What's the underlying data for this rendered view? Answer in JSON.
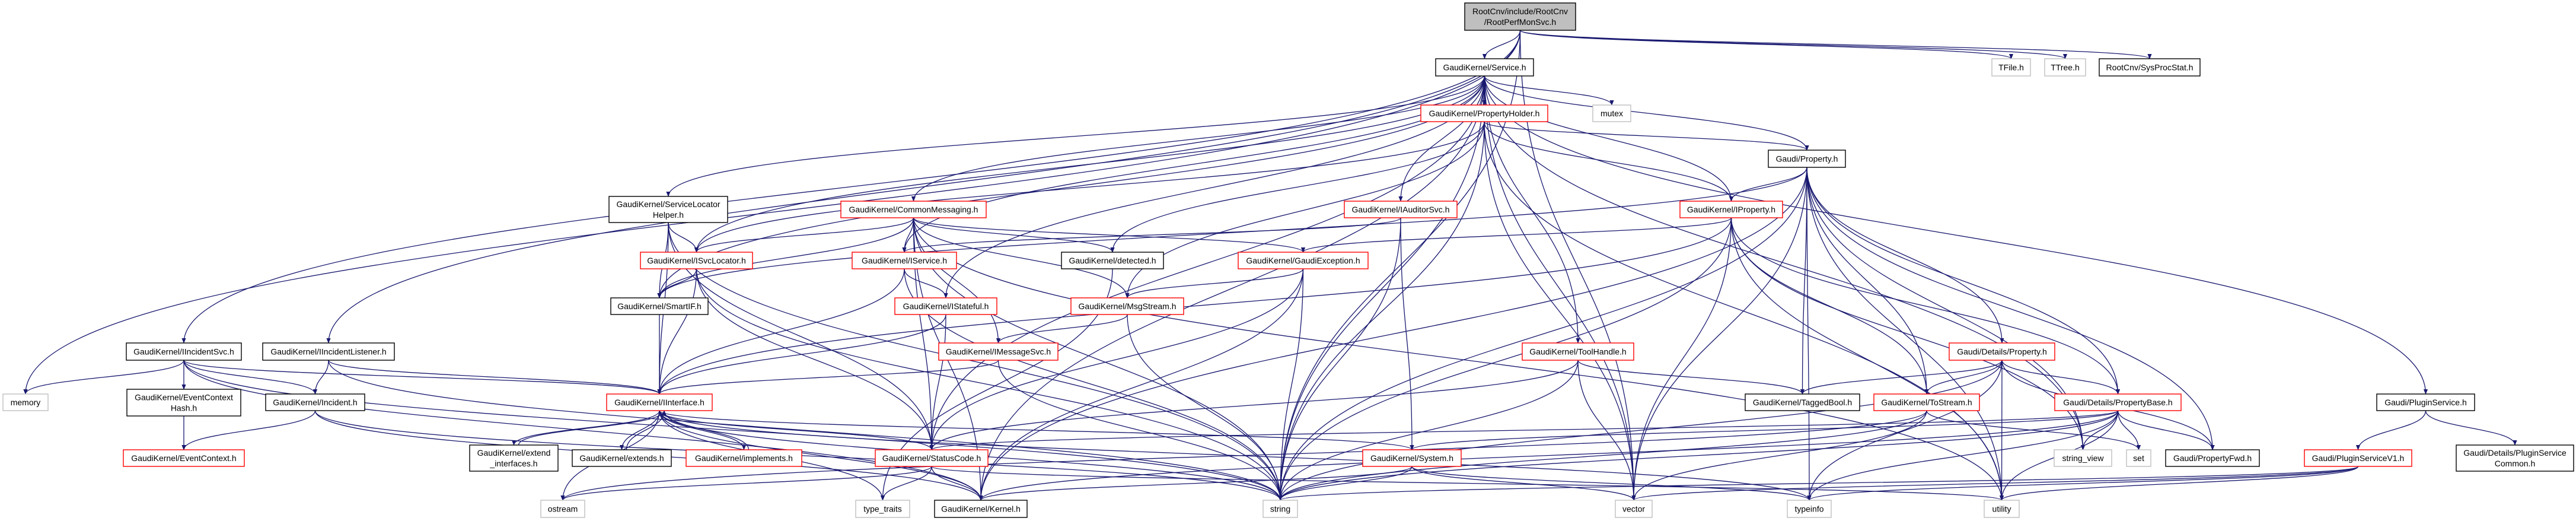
{
  "colors": {
    "edge": "#191970",
    "root_fill": "#bfbfbf",
    "border_normal": "#000000",
    "border_truncated": "#ff0000",
    "border_external": "#bfbfbf"
  },
  "nodes": [
    {
      "id": "root",
      "label": [
        "RootCnv/include/RootCnv",
        "/RootPerfMonSvc.h"
      ],
      "style": "root"
    },
    {
      "id": "service",
      "label": [
        "GaudiKernel/Service.h"
      ],
      "style": "normal"
    },
    {
      "id": "tfile",
      "label": [
        "TFile.h"
      ],
      "style": "external"
    },
    {
      "id": "ttree",
      "label": [
        "TTree.h"
      ],
      "style": "external"
    },
    {
      "id": "sysproc",
      "label": [
        "RootCnv/SysProcStat.h"
      ],
      "style": "normal"
    },
    {
      "id": "propholder",
      "label": [
        "GaudiKernel/PropertyHolder.h"
      ],
      "style": "truncated"
    },
    {
      "id": "mutex",
      "label": [
        "mutex"
      ],
      "style": "external"
    },
    {
      "id": "property",
      "label": [
        "Gaudi/Property.h"
      ],
      "style": "normal"
    },
    {
      "id": "slhelper",
      "label": [
        "GaudiKernel/ServiceLocator",
        "Helper.h"
      ],
      "style": "normal"
    },
    {
      "id": "commonmsg",
      "label": [
        "GaudiKernel/CommonMessaging.h"
      ],
      "style": "truncated"
    },
    {
      "id": "iauditor",
      "label": [
        "GaudiKernel/IAuditorSvc.h"
      ],
      "style": "truncated"
    },
    {
      "id": "iproperty",
      "label": [
        "GaudiKernel/IProperty.h"
      ],
      "style": "truncated"
    },
    {
      "id": "isvcloc",
      "label": [
        "GaudiKernel/ISvcLocator.h"
      ],
      "style": "truncated"
    },
    {
      "id": "iservice",
      "label": [
        "GaudiKernel/IService.h"
      ],
      "style": "truncated"
    },
    {
      "id": "detected",
      "label": [
        "GaudiKernel/detected.h"
      ],
      "style": "normal"
    },
    {
      "id": "gexc",
      "label": [
        "GaudiKernel/GaudiException.h"
      ],
      "style": "truncated"
    },
    {
      "id": "smartif",
      "label": [
        "GaudiKernel/SmartIF.h"
      ],
      "style": "normal"
    },
    {
      "id": "istateful",
      "label": [
        "GaudiKernel/IStateful.h"
      ],
      "style": "truncated"
    },
    {
      "id": "msgstream",
      "label": [
        "GaudiKernel/MsgStream.h"
      ],
      "style": "truncated"
    },
    {
      "id": "iincsvc",
      "label": [
        "GaudiKernel/IIncidentSvc.h"
      ],
      "style": "normal"
    },
    {
      "id": "iinclist",
      "label": [
        "GaudiKernel/IIncidentListener.h"
      ],
      "style": "normal"
    },
    {
      "id": "imsgsvc",
      "label": [
        "GaudiKernel/IMessageSvc.h"
      ],
      "style": "truncated"
    },
    {
      "id": "toolhandle",
      "label": [
        "GaudiKernel/ToolHandle.h"
      ],
      "style": "truncated"
    },
    {
      "id": "detprop",
      "label": [
        "Gaudi/Details/Property.h"
      ],
      "style": "truncated"
    },
    {
      "id": "memory",
      "label": [
        "memory"
      ],
      "style": "external"
    },
    {
      "id": "evhash",
      "label": [
        "GaudiKernel/EventContext",
        "Hash.h"
      ],
      "style": "normal"
    },
    {
      "id": "incident",
      "label": [
        "GaudiKernel/Incident.h"
      ],
      "style": "normal"
    },
    {
      "id": "iinterface",
      "label": [
        "GaudiKernel/IInterface.h"
      ],
      "style": "truncated"
    },
    {
      "id": "tagged",
      "label": [
        "GaudiKernel/TaggedBool.h"
      ],
      "style": "normal"
    },
    {
      "id": "tostream",
      "label": [
        "GaudiKernel/ToStream.h"
      ],
      "style": "truncated"
    },
    {
      "id": "propbase",
      "label": [
        "Gaudi/Details/PropertyBase.h"
      ],
      "style": "truncated"
    },
    {
      "id": "pluginsvc",
      "label": [
        "Gaudi/PluginService.h"
      ],
      "style": "normal"
    },
    {
      "id": "evctx",
      "label": [
        "GaudiKernel/EventContext.h"
      ],
      "style": "truncated"
    },
    {
      "id": "extif",
      "label": [
        "GaudiKernel/extend",
        "_interfaces.h"
      ],
      "style": "normal"
    },
    {
      "id": "extends",
      "label": [
        "GaudiKernel/extends.h"
      ],
      "style": "normal"
    },
    {
      "id": "implements",
      "label": [
        "GaudiKernel/implements.h"
      ],
      "style": "truncated"
    },
    {
      "id": "statuscode",
      "label": [
        "GaudiKernel/StatusCode.h"
      ],
      "style": "truncated"
    },
    {
      "id": "system",
      "label": [
        "GaudiKernel/System.h"
      ],
      "style": "truncated"
    },
    {
      "id": "strview",
      "label": [
        "string_view"
      ],
      "style": "external"
    },
    {
      "id": "set",
      "label": [
        "set"
      ],
      "style": "external"
    },
    {
      "id": "propfwd",
      "label": [
        "Gaudi/PropertyFwd.h"
      ],
      "style": "normal"
    },
    {
      "id": "psv1",
      "label": [
        "Gaudi/PluginServiceV1.h"
      ],
      "style": "truncated"
    },
    {
      "id": "psvcommon",
      "label": [
        "Gaudi/Details/PluginService",
        "Common.h"
      ],
      "style": "normal"
    },
    {
      "id": "ostream",
      "label": [
        "ostream"
      ],
      "style": "external"
    },
    {
      "id": "typetraits",
      "label": [
        "type_traits"
      ],
      "style": "external"
    },
    {
      "id": "kernel",
      "label": [
        "GaudiKernel/Kernel.h"
      ],
      "style": "normal"
    },
    {
      "id": "string",
      "label": [
        "string"
      ],
      "style": "external"
    },
    {
      "id": "vector",
      "label": [
        "vector"
      ],
      "style": "external"
    },
    {
      "id": "typeinfo",
      "label": [
        "typeinfo"
      ],
      "style": "external"
    },
    {
      "id": "utility",
      "label": [
        "utility"
      ],
      "style": "external"
    }
  ],
  "edges": [
    [
      "root",
      "service"
    ],
    [
      "root",
      "tfile"
    ],
    [
      "root",
      "ttree"
    ],
    [
      "root",
      "sysproc"
    ],
    [
      "root",
      "memory"
    ],
    [
      "root",
      "iincsvc"
    ],
    [
      "root",
      "iinclist"
    ],
    [
      "root",
      "string"
    ],
    [
      "root",
      "vector"
    ],
    [
      "service",
      "propholder"
    ],
    [
      "service",
      "mutex"
    ],
    [
      "service",
      "property"
    ],
    [
      "service",
      "iproperty"
    ],
    [
      "service",
      "commonmsg"
    ],
    [
      "service",
      "iauditor"
    ],
    [
      "service",
      "isvcloc"
    ],
    [
      "service",
      "iservice"
    ],
    [
      "service",
      "slhelper"
    ],
    [
      "service",
      "smartif"
    ],
    [
      "service",
      "istateful"
    ],
    [
      "service",
      "toolhandle"
    ],
    [
      "service",
      "pluginsvc"
    ],
    [
      "service",
      "string"
    ],
    [
      "service",
      "vector"
    ],
    [
      "service",
      "kernel"
    ],
    [
      "service",
      "statuscode"
    ],
    [
      "service",
      "strview"
    ],
    [
      "propholder",
      "property"
    ],
    [
      "propholder",
      "iproperty"
    ],
    [
      "propholder",
      "isvcloc"
    ],
    [
      "propholder",
      "detected"
    ],
    [
      "propholder",
      "msgstream"
    ],
    [
      "propholder",
      "string"
    ],
    [
      "propholder",
      "vector"
    ],
    [
      "propholder",
      "utility"
    ],
    [
      "property",
      "iproperty"
    ],
    [
      "property",
      "detprop"
    ],
    [
      "property",
      "propbase"
    ],
    [
      "property",
      "propfwd"
    ],
    [
      "property",
      "tagged"
    ],
    [
      "property",
      "tostream"
    ],
    [
      "property",
      "string"
    ],
    [
      "property",
      "strview"
    ],
    [
      "property",
      "utility"
    ],
    [
      "property",
      "typeinfo"
    ],
    [
      "property",
      "vector"
    ],
    [
      "property",
      "smartif"
    ],
    [
      "property",
      "kernel"
    ],
    [
      "iproperty",
      "gexc"
    ],
    [
      "iproperty",
      "iinterface"
    ],
    [
      "iproperty",
      "tostream"
    ],
    [
      "iproperty",
      "propbase"
    ],
    [
      "iproperty",
      "string"
    ],
    [
      "iproperty",
      "vector"
    ],
    [
      "iproperty",
      "utility"
    ],
    [
      "iproperty",
      "strview"
    ],
    [
      "commonmsg",
      "iservice"
    ],
    [
      "commonmsg",
      "isvcloc"
    ],
    [
      "commonmsg",
      "smartif"
    ],
    [
      "commonmsg",
      "detected"
    ],
    [
      "commonmsg",
      "msgstream"
    ],
    [
      "commonmsg",
      "gexc"
    ],
    [
      "commonmsg",
      "imsgsvc"
    ],
    [
      "commonmsg",
      "statuscode"
    ],
    [
      "commonmsg",
      "string"
    ],
    [
      "commonmsg",
      "utility"
    ],
    [
      "commonmsg",
      "kernel"
    ],
    [
      "iauditor",
      "iservice"
    ],
    [
      "iauditor",
      "system"
    ],
    [
      "iauditor",
      "string"
    ],
    [
      "slhelper",
      "isvcloc"
    ],
    [
      "slhelper",
      "smartif"
    ],
    [
      "slhelper",
      "iinterface"
    ],
    [
      "slhelper",
      "statuscode"
    ],
    [
      "slhelper",
      "string"
    ],
    [
      "isvcloc",
      "smartif"
    ],
    [
      "isvcloc",
      "iinterface"
    ],
    [
      "isvcloc",
      "statuscode"
    ],
    [
      "isvcloc",
      "string"
    ],
    [
      "iservice",
      "istateful"
    ],
    [
      "iservice",
      "iinterface"
    ],
    [
      "iservice",
      "string"
    ],
    [
      "detected",
      "typetraits"
    ],
    [
      "gexc",
      "msgstream"
    ],
    [
      "gexc",
      "statuscode"
    ],
    [
      "gexc",
      "kernel"
    ],
    [
      "gexc",
      "string"
    ],
    [
      "smartif",
      "iinterface"
    ],
    [
      "istateful",
      "iinterface"
    ],
    [
      "istateful",
      "statuscode"
    ],
    [
      "msgstream",
      "imsgsvc"
    ],
    [
      "msgstream",
      "string"
    ],
    [
      "imsgsvc",
      "iinterface"
    ],
    [
      "imsgsvc",
      "string"
    ],
    [
      "iincsvc",
      "memory"
    ],
    [
      "iincsvc",
      "evhash"
    ],
    [
      "iincsvc",
      "incident"
    ],
    [
      "iincsvc",
      "iinterface"
    ],
    [
      "iincsvc",
      "string"
    ],
    [
      "iincsvc",
      "kernel"
    ],
    [
      "iinclist",
      "incident"
    ],
    [
      "iinclist",
      "iinterface"
    ],
    [
      "iinclist",
      "string"
    ],
    [
      "evhash",
      "evctx"
    ],
    [
      "incident",
      "evctx"
    ],
    [
      "incident",
      "string"
    ],
    [
      "incident",
      "kernel"
    ],
    [
      "iinterface",
      "extif"
    ],
    [
      "iinterface",
      "extends"
    ],
    [
      "iinterface",
      "implements"
    ],
    [
      "iinterface",
      "statuscode"
    ],
    [
      "iinterface",
      "system"
    ],
    [
      "iinterface",
      "kernel"
    ],
    [
      "iinterface",
      "string"
    ],
    [
      "iinterface",
      "ostream"
    ],
    [
      "iinterface",
      "typetraits"
    ],
    [
      "iinterface",
      "typeinfo"
    ],
    [
      "extif",
      "iinterface"
    ],
    [
      "extends",
      "iinterface"
    ],
    [
      "implements",
      "iinterface"
    ],
    [
      "statuscode",
      "kernel"
    ],
    [
      "statuscode",
      "typetraits"
    ],
    [
      "statuscode",
      "ostream"
    ],
    [
      "statuscode",
      "utility"
    ],
    [
      "toolhandle",
      "tagged"
    ],
    [
      "toolhandle",
      "statuscode"
    ],
    [
      "toolhandle",
      "string"
    ],
    [
      "toolhandle",
      "vector"
    ],
    [
      "system",
      "kernel"
    ],
    [
      "system",
      "string"
    ],
    [
      "system",
      "vector"
    ],
    [
      "system",
      "typeinfo"
    ],
    [
      "detprop",
      "tagged"
    ],
    [
      "detprop",
      "tostream"
    ],
    [
      "detprop",
      "propbase"
    ],
    [
      "detprop",
      "propfwd"
    ],
    [
      "detprop",
      "utility"
    ],
    [
      "detprop",
      "string"
    ],
    [
      "detprop",
      "typeinfo"
    ],
    [
      "tostream",
      "string"
    ],
    [
      "tostream",
      "vector"
    ],
    [
      "tostream",
      "set"
    ],
    [
      "tostream",
      "ostream"
    ],
    [
      "propbase",
      "propfwd"
    ],
    [
      "propbase",
      "strview"
    ],
    [
      "propbase",
      "set"
    ],
    [
      "propbase",
      "string"
    ],
    [
      "propbase",
      "typeinfo"
    ],
    [
      "propbase",
      "utility"
    ],
    [
      "propbase",
      "kernel"
    ],
    [
      "propbase",
      "system"
    ],
    [
      "propbase",
      "statuscode"
    ],
    [
      "pluginsvc",
      "psv1"
    ],
    [
      "pluginsvc",
      "psvcommon"
    ],
    [
      "psv1",
      "string"
    ],
    [
      "psv1",
      "vector"
    ],
    [
      "psv1",
      "typeinfo"
    ],
    [
      "psv1",
      "utility"
    ]
  ]
}
